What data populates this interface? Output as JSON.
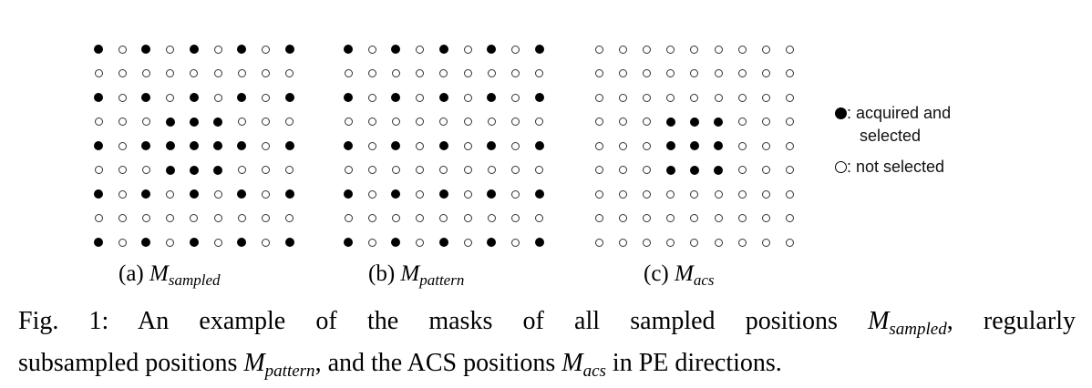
{
  "figure": {
    "panels": [
      {
        "id": "a",
        "label": "(a)",
        "symbol": "M",
        "subscript": "sampled",
        "mask": [
          "101010101",
          "000000000",
          "101010101",
          "000111000",
          "101111101",
          "000111000",
          "101010101",
          "000000000",
          "101010101"
        ]
      },
      {
        "id": "b",
        "label": "(b)",
        "symbol": "M",
        "subscript": "pattern",
        "mask": [
          "101010101",
          "000000000",
          "101010101",
          "000000000",
          "101010101",
          "000000000",
          "101010101",
          "000000000",
          "101010101"
        ]
      },
      {
        "id": "c",
        "label": "(c)",
        "symbol": "M",
        "subscript": "acs",
        "mask": [
          "000000000",
          "000000000",
          "000000000",
          "000111000",
          "000111000",
          "000111000",
          "000000000",
          "000000000",
          "000000000"
        ]
      }
    ],
    "legend": {
      "filled_line1": ": acquired and",
      "filled_line2": "selected",
      "hollow": ": not selected"
    },
    "caption": {
      "prefix": "Fig. 1:",
      "part1": " An example of the masks of all sampled positions ",
      "m1_symbol": "M",
      "m1_sub": "sampled",
      "part2": ", regularly",
      "part3": "subsampled positions ",
      "m2_symbol": "M",
      "m2_sub": "pattern",
      "part4": ", and the ACS positions ",
      "m3_symbol": "M",
      "m3_sub": "acs",
      "part5": " in PE directions."
    }
  }
}
